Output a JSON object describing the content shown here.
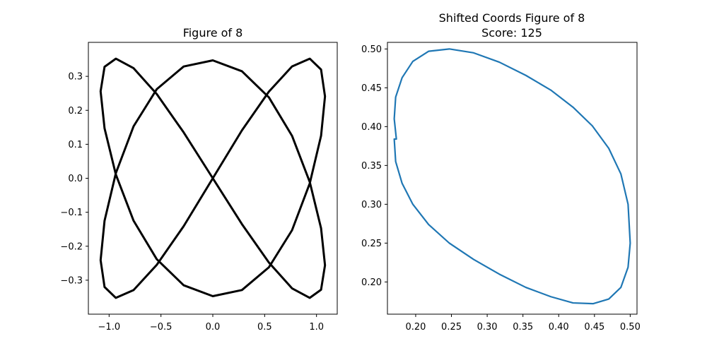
{
  "chart_data": [
    {
      "type": "line",
      "title": "Figure of 8",
      "xlabel": "",
      "ylabel": "",
      "xlim": [
        -1.2,
        1.2
      ],
      "ylim": [
        -0.4,
        0.4
      ],
      "xticks": [
        -1.0,
        -0.5,
        0.0,
        0.5,
        1.0
      ],
      "xtick_labels": [
        "−1.0",
        "−0.5",
        "0.0",
        "0.5",
        "1.0"
      ],
      "yticks": [
        -0.3,
        -0.2,
        -0.1,
        0.0,
        0.1,
        0.2,
        0.3
      ],
      "ytick_labels": [
        "−0.3",
        "−0.2",
        "−0.1",
        "0.0",
        "0.1",
        "0.2",
        "0.3"
      ],
      "grid": false,
      "series": [
        {
          "color": "#000000",
          "curve": "lemniscate of Gerono",
          "x": [
            0.0,
            0.281,
            0.541,
            0.764,
            0.935,
            1.044,
            1.082,
            1.044,
            0.935,
            0.764,
            0.541,
            0.281,
            0.0,
            -0.281,
            -0.541,
            -0.764,
            -0.935,
            -1.044,
            -1.082,
            -1.044,
            -0.935,
            -0.764,
            -0.541,
            -0.281,
            0.0,
            0.281,
            0.541,
            0.764,
            0.935,
            1.044,
            1.082,
            1.044,
            0.935,
            0.764,
            0.541,
            0.281,
            0.0,
            -0.281,
            -0.541,
            -0.764,
            -0.935,
            -1.044,
            -1.082,
            -1.044,
            -0.935,
            -0.764,
            -0.541,
            -0.281,
            0.0
          ],
          "y": [
            0.0,
            0.141,
            0.255,
            0.329,
            0.352,
            0.32,
            0.241,
            0.125,
            -0.015,
            -0.153,
            -0.262,
            -0.329,
            -0.347,
            -0.315,
            -0.238,
            -0.125,
            0.011,
            0.147,
            0.256,
            0.328,
            0.352,
            0.324,
            0.248,
            0.135,
            0.0,
            -0.135,
            -0.248,
            -0.324,
            -0.352,
            -0.328,
            -0.256,
            -0.147,
            -0.011,
            0.125,
            0.238,
            0.315,
            0.347,
            0.329,
            0.262,
            0.153,
            0.015,
            -0.125,
            -0.241,
            -0.32,
            -0.352,
            -0.329,
            -0.255,
            -0.141,
            0.0
          ]
        }
      ]
    },
    {
      "type": "line",
      "title": "Shifted Coords Figure of 8",
      "subtitle": "Score: 125",
      "xlabel": "",
      "ylabel": "",
      "xlim": [
        0.1605,
        0.5095
      ],
      "ylim": [
        0.1585,
        0.5085
      ],
      "xticks": [
        0.2,
        0.25,
        0.3,
        0.35,
        0.4,
        0.45,
        0.5
      ],
      "xtick_labels": [
        "0.20",
        "0.25",
        "0.30",
        "0.35",
        "0.40",
        "0.45",
        "0.50"
      ],
      "yticks": [
        0.2,
        0.25,
        0.3,
        0.35,
        0.4,
        0.45,
        0.5
      ],
      "ytick_labels": [
        "0.20",
        "0.25",
        "0.30",
        "0.35",
        "0.40",
        "0.45",
        "0.50"
      ],
      "grid": false,
      "series": [
        {
          "color": "#1f77b4",
          "curve": "tilted ellipse",
          "x": [
            0.173,
            0.17,
            0.172,
            0.181,
            0.196,
            0.218,
            0.247,
            0.281,
            0.317,
            0.354,
            0.389,
            0.42,
            0.447,
            0.47,
            0.487,
            0.497,
            0.5,
            0.497,
            0.487,
            0.47,
            0.448,
            0.42,
            0.389,
            0.354,
            0.317,
            0.281,
            0.247,
            0.218,
            0.196,
            0.181,
            0.172,
            0.17,
            0.173
          ],
          "y": [
            0.384,
            0.41,
            0.438,
            0.463,
            0.484,
            0.497,
            0.5,
            0.495,
            0.483,
            0.466,
            0.447,
            0.425,
            0.401,
            0.372,
            0.339,
            0.3,
            0.25,
            0.219,
            0.193,
            0.178,
            0.172,
            0.173,
            0.181,
            0.193,
            0.21,
            0.229,
            0.25,
            0.274,
            0.3,
            0.327,
            0.355,
            0.384,
            0.384
          ]
        }
      ]
    }
  ]
}
